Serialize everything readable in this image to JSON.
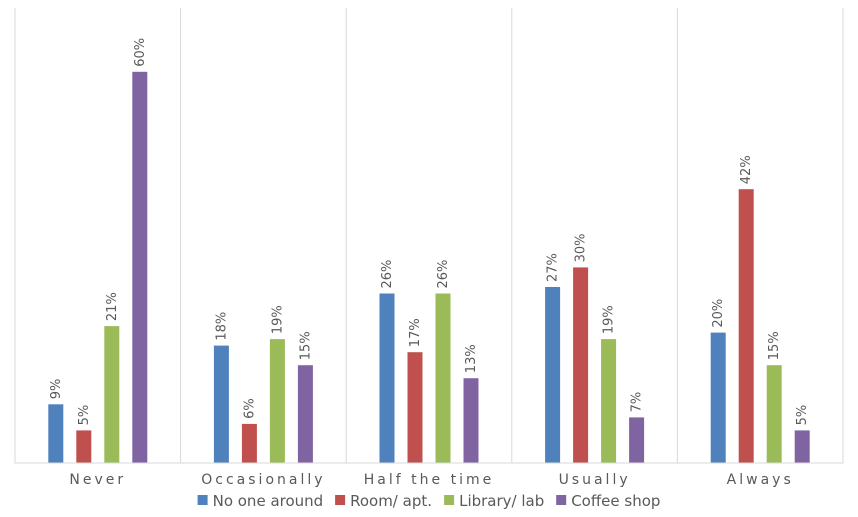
{
  "chart_data": {
    "type": "bar",
    "categories": [
      "Never",
      "Occasionally",
      "Half the time",
      "Usually",
      "Always"
    ],
    "series": [
      {
        "name": "No one around",
        "color": "#4F81BD",
        "values": [
          9,
          18,
          26,
          27,
          20
        ],
        "labels": [
          "9%",
          "18%",
          "26%",
          "27%",
          "20%"
        ]
      },
      {
        "name": "Room/ apt.",
        "color": "#C0504D",
        "values": [
          5,
          6,
          17,
          30,
          42
        ],
        "labels": [
          "5%",
          "6%",
          "17%",
          "30%",
          "42%"
        ]
      },
      {
        "name": "Library/ lab",
        "color": "#9BBB59",
        "values": [
          21,
          19,
          26,
          19,
          15
        ],
        "labels": [
          "21%",
          "19%",
          "26%",
          "19%",
          "15%"
        ]
      },
      {
        "name": "Coffee shop",
        "color": "#8064A2",
        "values": [
          60,
          15,
          13,
          7,
          5
        ],
        "labels": [
          "60%",
          "15%",
          "13%",
          "7%",
          "5%"
        ]
      }
    ],
    "ylim": [
      0,
      70
    ],
    "value_unit": "%",
    "grid": "vertical category separators",
    "legend": "bottom"
  }
}
